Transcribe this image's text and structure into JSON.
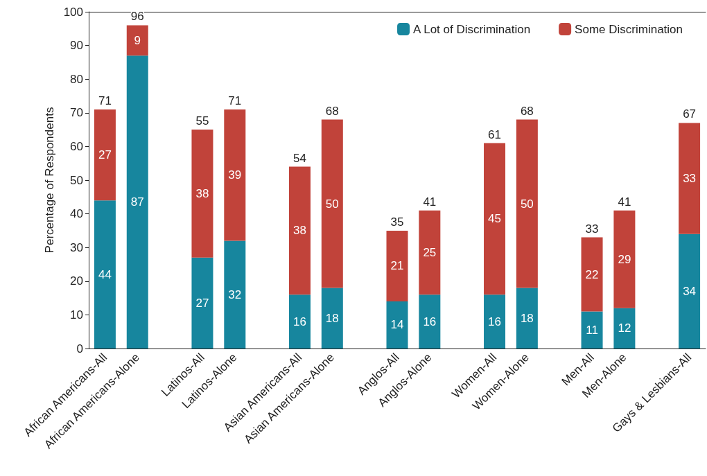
{
  "chart_data": {
    "type": "bar",
    "stacked": true,
    "ylabel": "Percentage of Respondents",
    "categories": [
      "African Americans-All",
      "African Americans-Alone",
      null,
      "Latinos-All",
      "Latinos-Alone",
      null,
      "Asian Americans-All",
      "Asian Americans-Alone",
      null,
      "Anglos-All",
      "Anglos-Alone",
      null,
      "Women-All",
      "Women-Alone",
      null,
      "Men-All",
      "Men-Alone",
      null,
      "Gays & Lesbians-All"
    ],
    "series": [
      {
        "name": "A Lot of Discrimination",
        "color": "#17869e",
        "values": [
          44,
          87,
          null,
          27,
          32,
          null,
          16,
          18,
          null,
          14,
          16,
          null,
          16,
          18,
          null,
          11,
          12,
          null,
          34
        ]
      },
      {
        "name": "Some Discrimination",
        "color": "#c1433a",
        "values": [
          27,
          9,
          null,
          38,
          39,
          null,
          38,
          50,
          null,
          21,
          25,
          null,
          45,
          50,
          null,
          22,
          29,
          null,
          33
        ]
      }
    ],
    "annotations": [
      {
        "text": "71",
        "x": "African Americans-All",
        "y": 71
      },
      {
        "text": "96",
        "x": "African Americans-Alone",
        "y": 96
      },
      {
        "text": "55",
        "x": "Latinos-All",
        "y": 65
      },
      {
        "text": "71",
        "x": "Latinos-Alone",
        "y": 71
      },
      {
        "text": "54",
        "x": "Asian Americans-All",
        "y": 54
      },
      {
        "text": "68",
        "x": "Asian Americans-Alone",
        "y": 68
      },
      {
        "text": "35",
        "x": "Anglos-All",
        "y": 35
      },
      {
        "text": "41",
        "x": "Anglos-Alone",
        "y": 41
      },
      {
        "text": "61",
        "x": "Women-All",
        "y": 61
      },
      {
        "text": "68",
        "x": "Women-Alone",
        "y": 68
      },
      {
        "text": "33",
        "x": "Men-All",
        "y": 33
      },
      {
        "text": "41",
        "x": "Men-Alone",
        "y": 41
      },
      {
        "text": "67",
        "x": "Gays & Lesbians-All",
        "y": 67
      }
    ],
    "data_labels": true,
    "ylim": [
      0,
      100
    ],
    "yticks": [
      0,
      10,
      20,
      30,
      40,
      50,
      60,
      70,
      80,
      90,
      100
    ],
    "grid": false,
    "legend": "top right"
  }
}
